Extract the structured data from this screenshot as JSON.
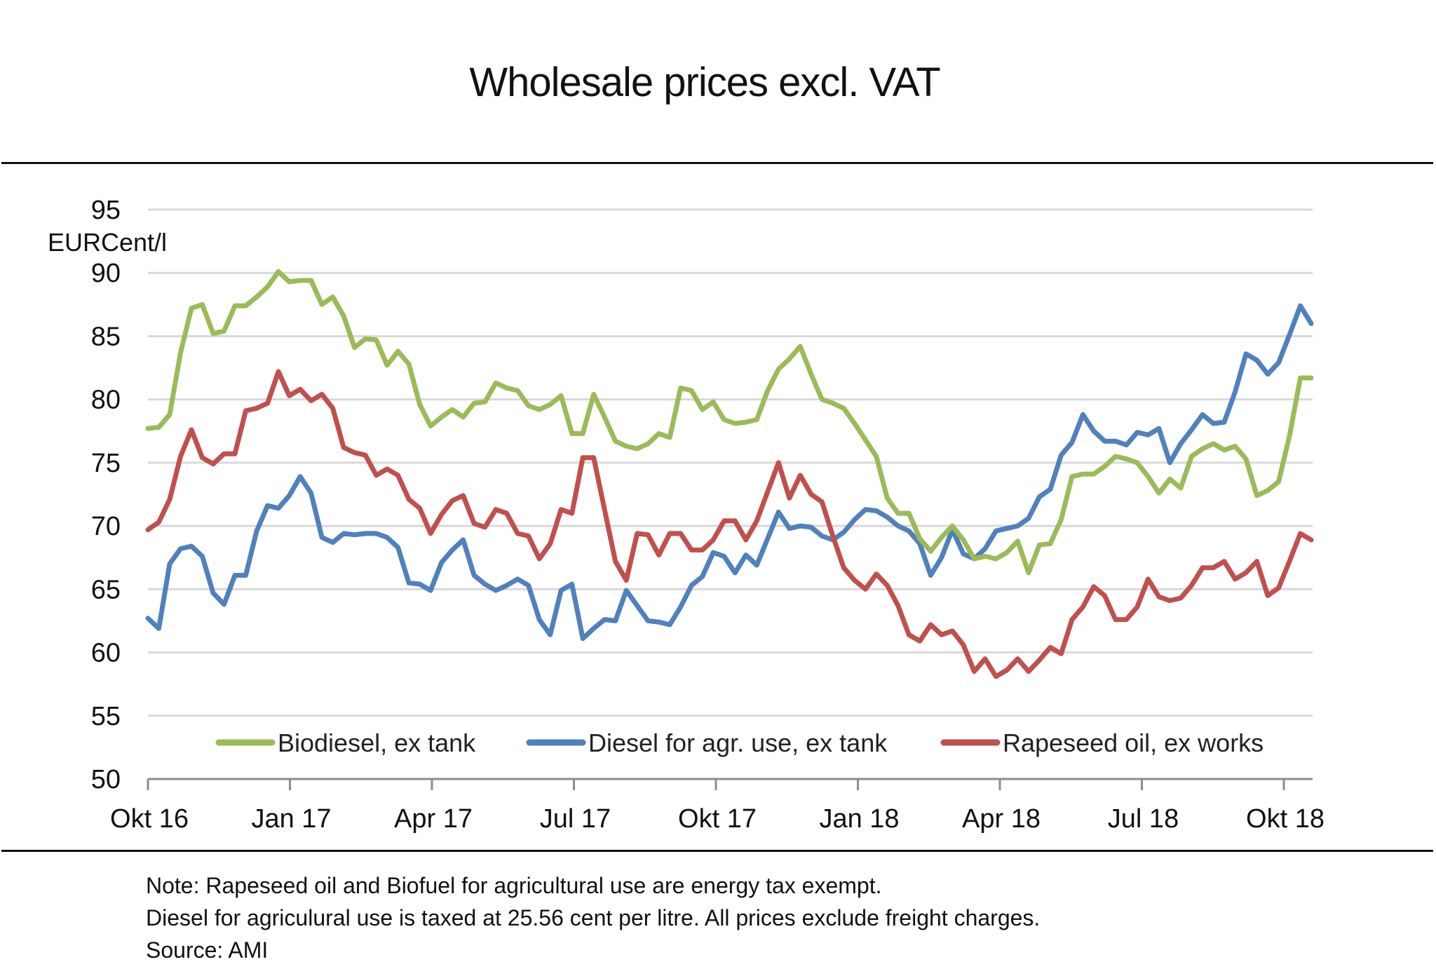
{
  "title": "Wholesale prices excl. VAT",
  "notes": [
    "Note:  Rapeseed oil  and Biofuel for agricultural use are energy tax exempt.",
    "Diesel for agriculural use is taxed at 25.56 cent per litre. All prices exclude freight charges.",
    "Source: AMI"
  ],
  "chart_data": {
    "type": "line",
    "title": "Wholesale prices excl. VAT",
    "xlabel": "",
    "ylabel": "EURCent/l",
    "ylim": [
      50,
      95
    ],
    "yticks": [
      50,
      55,
      60,
      65,
      70,
      75,
      80,
      85,
      90,
      95
    ],
    "ytick_labels": [
      "50",
      "55",
      "60",
      "65",
      "70",
      "75",
      "80",
      "85",
      "90",
      "95"
    ],
    "x_tick_labels": [
      "Okt 16",
      "Jan 17",
      "Apr 17",
      "Jul 17",
      "Okt 17",
      "Jan 18",
      "Apr 18",
      "Jul 18",
      "Okt 18"
    ],
    "x_frequency": "weekly",
    "x_range": [
      "Okt 16",
      "Okt 18"
    ],
    "grid": "horizontal",
    "legend_position": "bottom-inside",
    "series": [
      {
        "name": "Biodiesel, ex tank",
        "color": "#9BBB59",
        "values": [
          77.7,
          77.8,
          78.8,
          83.7,
          87.2,
          87.5,
          85.2,
          85.4,
          87.4,
          87.4,
          88.1,
          88.9,
          90.1,
          89.3,
          89.4,
          89.4,
          87.5,
          88.1,
          86.6,
          84.1,
          84.8,
          84.7,
          82.7,
          83.8,
          82.8,
          79.6,
          77.9,
          78.6,
          79.2,
          78.6,
          79.7,
          79.8,
          81.3,
          80.9,
          80.7,
          79.5,
          79.2,
          79.6,
          80.3,
          77.3,
          77.3,
          80.4,
          78.6,
          76.7,
          76.3,
          76.1,
          76.5,
          77.3,
          77.0,
          80.9,
          80.7,
          79.2,
          79.8,
          78.4,
          78.1,
          78.2,
          78.4,
          80.7,
          82.4,
          83.2,
          84.2,
          82.0,
          80.0,
          79.7,
          79.3,
          78.1,
          76.8,
          75.5,
          72.2,
          71.0,
          71.0,
          69.0,
          68.0,
          69.1,
          70.0,
          68.9,
          67.4,
          67.6,
          67.4,
          67.9,
          68.8,
          66.3,
          68.5,
          68.6,
          70.5,
          73.9,
          74.1,
          74.1,
          74.7,
          75.5,
          75.3,
          75.0,
          73.9,
          72.6,
          73.7,
          73.0,
          75.5,
          76.1,
          76.5,
          76.0,
          76.3,
          75.3,
          72.4,
          72.8,
          73.5,
          77.1,
          81.7,
          81.7
        ]
      },
      {
        "name": "Diesel for agr. use, ex tank",
        "color": "#4F81BD",
        "values": [
          62.7,
          61.9,
          67.0,
          68.2,
          68.4,
          67.6,
          64.7,
          63.8,
          66.1,
          66.1,
          69.6,
          71.6,
          71.4,
          72.4,
          73.9,
          72.6,
          69.1,
          68.7,
          69.4,
          69.3,
          69.4,
          69.4,
          69.1,
          68.3,
          65.5,
          65.4,
          64.9,
          67.1,
          68.1,
          68.9,
          66.1,
          65.4,
          64.9,
          65.3,
          65.8,
          65.3,
          62.6,
          61.4,
          64.9,
          65.4,
          61.1,
          61.9,
          62.6,
          62.5,
          64.9,
          63.7,
          62.5,
          62.4,
          62.2,
          63.6,
          65.3,
          66.0,
          67.9,
          67.6,
          66.3,
          67.7,
          66.9,
          69.0,
          71.1,
          69.8,
          70.0,
          69.9,
          69.2,
          68.9,
          69.5,
          70.5,
          71.3,
          71.2,
          70.7,
          70.0,
          69.6,
          68.6,
          66.1,
          67.5,
          69.7,
          67.8,
          67.4,
          68.2,
          69.6,
          69.8,
          70.0,
          70.6,
          72.3,
          72.9,
          75.6,
          76.6,
          78.8,
          77.5,
          76.7,
          76.7,
          76.4,
          77.4,
          77.2,
          77.7,
          75.0,
          76.5,
          77.6,
          78.8,
          78.1,
          78.2,
          80.6,
          83.6,
          83.1,
          82.0,
          82.9,
          85.1,
          87.4,
          86.0
        ]
      },
      {
        "name": "Rapeseed oil, ex works",
        "color": "#C0504D",
        "values": [
          69.7,
          70.3,
          72.1,
          75.5,
          77.6,
          75.4,
          74.9,
          75.7,
          75.7,
          79.1,
          79.3,
          79.7,
          82.2,
          80.3,
          80.8,
          79.9,
          80.4,
          79.3,
          76.2,
          75.8,
          75.6,
          74.0,
          74.5,
          74.0,
          72.1,
          71.4,
          69.4,
          70.9,
          72.0,
          72.4,
          70.2,
          69.9,
          71.3,
          71.0,
          69.4,
          69.2,
          67.4,
          68.6,
          71.3,
          71.0,
          75.4,
          75.4,
          71.3,
          67.2,
          65.7,
          69.4,
          69.3,
          67.7,
          69.4,
          69.4,
          68.1,
          68.1,
          68.9,
          70.4,
          70.4,
          68.9,
          70.4,
          72.7,
          75.0,
          72.2,
          74.0,
          72.5,
          71.9,
          69.2,
          66.7,
          65.7,
          65.0,
          66.2,
          65.3,
          63.7,
          61.4,
          60.9,
          62.2,
          61.4,
          61.7,
          60.6,
          58.5,
          59.5,
          58.1,
          58.6,
          59.5,
          58.5,
          59.4,
          60.4,
          59.9,
          62.6,
          63.6,
          65.2,
          64.5,
          62.6,
          62.6,
          63.6,
          65.8,
          64.4,
          64.1,
          64.3,
          65.3,
          66.7,
          66.7,
          67.2,
          65.8,
          66.3,
          67.2,
          64.5,
          65.1,
          67.2,
          69.4,
          68.9
        ]
      }
    ]
  }
}
